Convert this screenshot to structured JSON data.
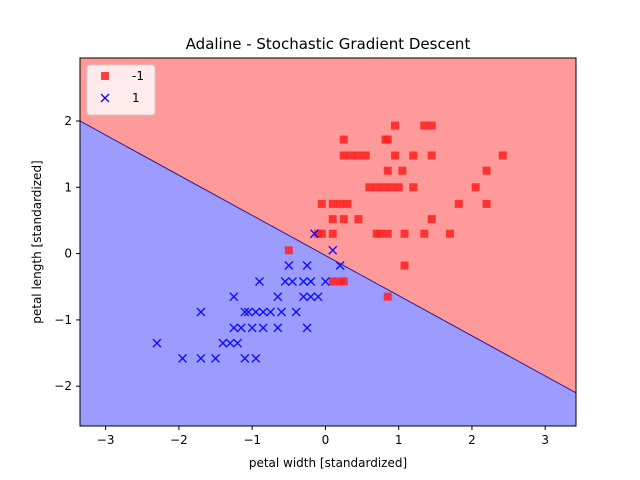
{
  "chart_data": {
    "type": "scatter",
    "title": "Adaline - Stochastic Gradient Descent",
    "xlabel": "petal width [standardized]",
    "ylabel": "petal length [standardized]",
    "xlim": [
      -3.35,
      3.42
    ],
    "ylim": [
      -2.6,
      2.95
    ],
    "x_ticks": [
      -3,
      -2,
      -1,
      0,
      1,
      2,
      3
    ],
    "y_ticks": [
      -2,
      -1,
      0,
      1,
      2
    ],
    "legend_position": "top-left",
    "decision_boundary": {
      "x": [
        -3.35,
        3.42
      ],
      "y": [
        2.0,
        -2.1
      ]
    },
    "regions": [
      {
        "class": "-1",
        "side": "above",
        "color": "#ff9a9a"
      },
      {
        "class": "1",
        "side": "below",
        "color": "#9c9cff"
      }
    ],
    "series": [
      {
        "name": "-1",
        "marker": "square",
        "color": "#ff2020",
        "points": [
          [
            0.25,
            1.72
          ],
          [
            0.82,
            1.72
          ],
          [
            0.85,
            1.72
          ],
          [
            0.95,
            1.93
          ],
          [
            1.35,
            1.93
          ],
          [
            1.45,
            1.93
          ],
          [
            0.25,
            1.48
          ],
          [
            0.35,
            1.48
          ],
          [
            0.45,
            1.48
          ],
          [
            0.55,
            1.48
          ],
          [
            0.95,
            1.48
          ],
          [
            1.2,
            1.48
          ],
          [
            1.45,
            1.48
          ],
          [
            2.42,
            1.48
          ],
          [
            0.85,
            1.25
          ],
          [
            1.05,
            1.25
          ],
          [
            2.2,
            1.25
          ],
          [
            0.6,
            1.0
          ],
          [
            0.7,
            1.0
          ],
          [
            0.8,
            1.0
          ],
          [
            0.9,
            1.0
          ],
          [
            1.0,
            1.0
          ],
          [
            1.2,
            1.0
          ],
          [
            2.05,
            1.0
          ],
          [
            -0.05,
            0.75
          ],
          [
            0.1,
            0.75
          ],
          [
            0.2,
            0.75
          ],
          [
            0.3,
            0.75
          ],
          [
            1.82,
            0.75
          ],
          [
            2.2,
            0.75
          ],
          [
            0.1,
            0.52
          ],
          [
            0.25,
            0.52
          ],
          [
            0.45,
            0.52
          ],
          [
            1.45,
            0.52
          ],
          [
            -0.1,
            0.3
          ],
          [
            -0.05,
            0.3
          ],
          [
            0.1,
            0.3
          ],
          [
            0.7,
            0.3
          ],
          [
            0.75,
            0.3
          ],
          [
            0.85,
            0.3
          ],
          [
            1.08,
            0.3
          ],
          [
            1.35,
            0.3
          ],
          [
            1.7,
            0.3
          ],
          [
            -0.5,
            0.05
          ],
          [
            1.08,
            -0.18
          ],
          [
            0.1,
            -0.42
          ],
          [
            0.2,
            -0.42
          ],
          [
            0.25,
            -0.42
          ],
          [
            0.85,
            -0.65
          ]
        ]
      },
      {
        "name": "1",
        "marker": "x",
        "color": "#1010ff",
        "points": [
          [
            -0.15,
            0.3
          ],
          [
            0.1,
            0.05
          ],
          [
            -0.5,
            -0.18
          ],
          [
            -0.25,
            -0.18
          ],
          [
            0.2,
            -0.18
          ],
          [
            -0.9,
            -0.42
          ],
          [
            -0.55,
            -0.42
          ],
          [
            -0.45,
            -0.42
          ],
          [
            -0.3,
            -0.42
          ],
          [
            -0.2,
            -0.42
          ],
          [
            0.0,
            -0.42
          ],
          [
            -1.25,
            -0.65
          ],
          [
            -0.65,
            -0.65
          ],
          [
            -0.3,
            -0.65
          ],
          [
            -0.2,
            -0.65
          ],
          [
            -0.1,
            -0.65
          ],
          [
            -1.7,
            -0.88
          ],
          [
            -1.1,
            -0.88
          ],
          [
            -1.05,
            -0.88
          ],
          [
            -0.95,
            -0.88
          ],
          [
            -0.85,
            -0.88
          ],
          [
            -0.75,
            -0.88
          ],
          [
            -0.6,
            -0.88
          ],
          [
            -0.4,
            -0.88
          ],
          [
            -1.25,
            -1.12
          ],
          [
            -1.15,
            -1.12
          ],
          [
            -1.0,
            -1.12
          ],
          [
            -0.85,
            -1.12
          ],
          [
            -0.65,
            -1.12
          ],
          [
            -0.25,
            -1.12
          ],
          [
            -2.3,
            -1.35
          ],
          [
            -1.4,
            -1.35
          ],
          [
            -1.3,
            -1.35
          ],
          [
            -1.2,
            -1.35
          ],
          [
            -1.95,
            -1.58
          ],
          [
            -1.7,
            -1.58
          ],
          [
            -1.5,
            -1.58
          ],
          [
            -1.1,
            -1.58
          ],
          [
            -0.95,
            -1.58
          ]
        ]
      }
    ]
  }
}
